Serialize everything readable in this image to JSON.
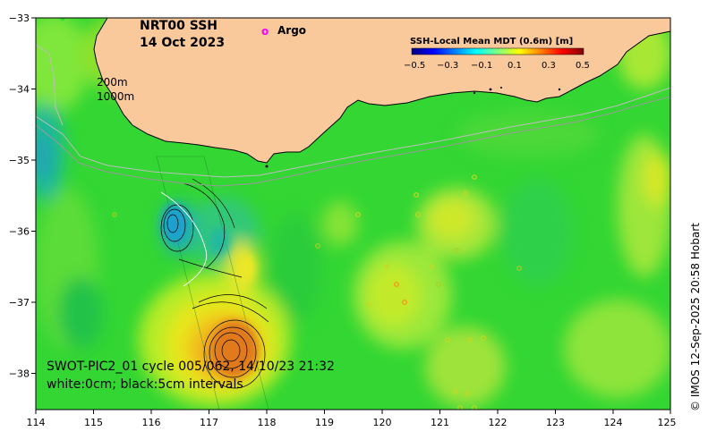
{
  "title": {
    "product": "NRT00 SSH",
    "date": "14 Oct 2023"
  },
  "legend": {
    "marker_glyph": "o",
    "argo_label": "Argo",
    "argo_color": "#ff00ff"
  },
  "colorbar": {
    "title": "SSH-Local Mean MDT (0.6m) [m]",
    "tick_labels": [
      "−0.5",
      "−0.3",
      "−0.1",
      "0.1",
      "0.3",
      "0.5"
    ],
    "colors": [
      "#00007f",
      "#0000ff",
      "#007fff",
      "#00ffff",
      "#7fff7f",
      "#ffff00",
      "#ff7f00",
      "#ff0000",
      "#7f0000"
    ]
  },
  "isobaths": {
    "shallow": "200m",
    "deep": "1000m"
  },
  "swot": {
    "line1": "SWOT-PIC2_01 cycle 005/062, 14/10/23 21:32",
    "line2": "white:0cm; black:5cm intervals"
  },
  "axes": {
    "lon_ticks": [
      "114",
      "115",
      "116",
      "117",
      "118",
      "119",
      "120",
      "121",
      "122",
      "123",
      "124",
      "125"
    ],
    "lat_ticks": [
      "−33",
      "−34",
      "−35",
      "−36",
      "−37",
      "−38"
    ]
  },
  "credit": "© IMOS 12-Sep-2025 20:58 Hobart",
  "colors": {
    "land": "#f9c89b",
    "sea_base": "#33d633",
    "warm_core": "#e07a1a",
    "cold_core": "#1aa0d0"
  }
}
